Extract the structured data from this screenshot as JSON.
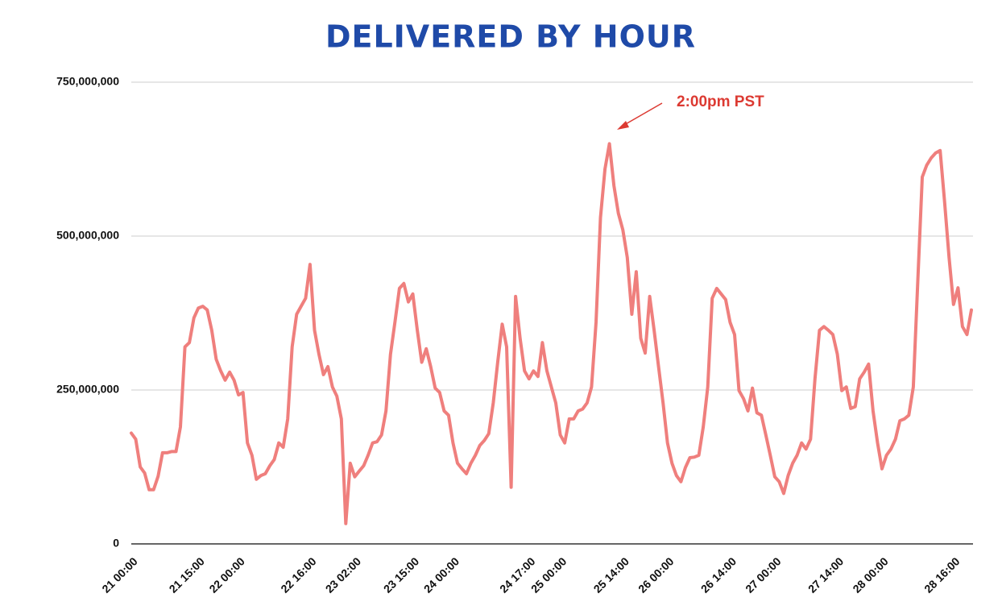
{
  "chart_data": {
    "type": "line",
    "title": "DELIVERED BY HOUR",
    "annotation": "2:00pm PST",
    "color": "#ef7f7d",
    "annotation_color": "#dc3a32",
    "categories": [
      "21 00:00",
      null,
      null,
      null,
      null,
      null,
      null,
      null,
      null,
      null,
      null,
      null,
      null,
      null,
      null,
      "21 15:00",
      null,
      null,
      null,
      null,
      null,
      null,
      null,
      null,
      "22 00:00",
      null,
      null,
      null,
      null,
      null,
      null,
      null,
      null,
      null,
      null,
      null,
      null,
      null,
      null,
      null,
      "22 16:00",
      null,
      null,
      null,
      null,
      null,
      null,
      null,
      null,
      null,
      "23 02:00",
      null,
      null,
      null,
      null,
      null,
      null,
      null,
      null,
      null,
      null,
      null,
      null,
      "23 15:00",
      null,
      null,
      null,
      null,
      null,
      null,
      null,
      null,
      "24 00:00",
      null,
      null,
      null,
      null,
      null,
      null,
      null,
      null,
      null,
      null,
      null,
      null,
      null,
      null,
      null,
      null,
      "24 17:00",
      null,
      null,
      null,
      null,
      null,
      null,
      "25 00:00",
      null,
      null,
      null,
      null,
      null,
      null,
      null,
      null,
      null,
      null,
      null,
      null,
      null,
      "25 14:00",
      null,
      null,
      null,
      null,
      null,
      null,
      null,
      null,
      null,
      "26 00:00",
      null,
      null,
      null,
      null,
      null,
      null,
      null,
      null,
      null,
      null,
      null,
      null,
      null,
      "26 14:00",
      null,
      null,
      null,
      null,
      null,
      null,
      null,
      null,
      null,
      "27 00:00",
      null,
      null,
      null,
      null,
      null,
      null,
      null,
      null,
      null,
      null,
      null,
      null,
      null,
      "27 14:00",
      null,
      null,
      null,
      null,
      null,
      null,
      null,
      null,
      null,
      "28 00:00",
      null,
      null,
      null,
      null,
      null,
      null,
      null,
      null,
      null,
      null,
      null,
      null,
      null,
      null,
      null,
      "28 16:00",
      null,
      null,
      null,
      null
    ],
    "values": [
      180000000,
      170000000,
      125000000,
      115000000,
      88000000,
      88000000,
      110000000,
      148000000,
      148000000,
      150000000,
      150000000,
      190000000,
      320000000,
      327000000,
      367000000,
      383000000,
      386000000,
      380000000,
      347000000,
      300000000,
      281000000,
      266000000,
      279000000,
      266000000,
      242000000,
      246000000,
      164000000,
      144000000,
      105000000,
      111000000,
      114000000,
      127000000,
      137000000,
      164000000,
      157000000,
      203000000,
      320000000,
      373000000,
      386000000,
      399000000,
      454000000,
      347000000,
      308000000,
      275000000,
      288000000,
      255000000,
      240000000,
      203000000,
      33000000,
      131000000,
      109000000,
      118000000,
      127000000,
      144000000,
      164000000,
      166000000,
      177000000,
      216000000,
      308000000,
      360000000,
      415000000,
      423000000,
      393000000,
      406000000,
      347000000,
      295000000,
      317000000,
      288000000,
      253000000,
      246000000,
      216000000,
      209000000,
      164000000,
      131000000,
      122000000,
      114000000,
      131000000,
      144000000,
      160000000,
      168000000,
      179000000,
      229000000,
      295000000,
      357000000,
      320000000,
      92000000,
      402000000,
      334000000,
      281000000,
      268000000,
      281000000,
      272000000,
      327000000,
      281000000,
      255000000,
      229000000,
      177000000,
      164000000,
      203000000,
      203000000,
      216000000,
      219000000,
      229000000,
      255000000,
      360000000,
      530000000,
      609000000,
      650000000,
      582000000,
      537000000,
      510000000,
      465000000,
      373000000,
      442000000,
      334000000,
      310000000,
      402000000,
      347000000,
      288000000,
      229000000,
      164000000,
      131000000,
      111000000,
      101000000,
      124000000,
      140000000,
      141000000,
      144000000,
      190000000,
      255000000,
      399000000,
      415000000,
      406000000,
      397000000,
      360000000,
      340000000,
      249000000,
      236000000,
      216000000,
      253000000,
      213000000,
      209000000,
      177000000,
      144000000,
      109000000,
      101000000,
      82000000,
      111000000,
      131000000,
      144000000,
      164000000,
      154000000,
      170000000,
      268000000,
      347000000,
      353000000,
      347000000,
      340000000,
      308000000,
      249000000,
      255000000,
      220000000,
      223000000,
      268000000,
      279000000,
      292000000,
      216000000,
      164000000,
      122000000,
      144000000,
      154000000,
      170000000,
      200000000,
      203000000,
      209000000,
      255000000,
      425000000,
      596000000,
      615000000,
      627000000,
      635000000,
      639000000,
      556000000,
      465000000,
      389000000,
      416000000,
      353000000,
      340000000,
      380000000
    ],
    "ylim": [
      0,
      750000000
    ],
    "yticks": [
      0,
      {
        "value": 250000000,
        "label": "250,000,000"
      },
      {
        "value": 500000000,
        "label": "500,000,000"
      },
      {
        "value": 750000000,
        "label": "750,000,000"
      }
    ],
    "grid": true
  }
}
